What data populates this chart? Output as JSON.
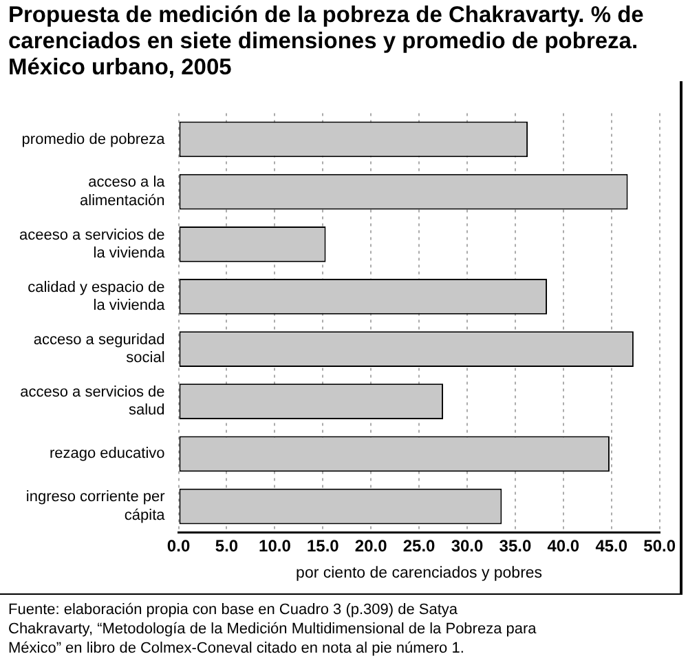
{
  "chart_data": {
    "type": "bar",
    "orientation": "horizontal",
    "title": "Propuesta de medición de la pobreza de Chakravarty. % de carenciados en siete dimensiones y promedio de pobreza. México urbano, 2005",
    "xlabel": "por ciento de carenciados y pobres",
    "categories": [
      "promedio de pobreza",
      "acceso a la alimentación",
      "aceeso a servicios de la vivienda",
      "calidad y espacio de la vivienda",
      "acceso a seguridad social",
      "acceso a servicios de salud",
      "rezago educativo",
      "ingreso corriente per cápita"
    ],
    "values": [
      36.3,
      46.7,
      15.3,
      38.3,
      47.3,
      27.5,
      44.8,
      33.6
    ],
    "color": "#c8c8c8",
    "xlim": [
      0,
      50
    ],
    "xticks": [
      {
        "value": 0,
        "label": "0.0"
      },
      {
        "value": 5,
        "label": "5.0"
      },
      {
        "value": 10,
        "label": "10.0"
      },
      {
        "value": 15,
        "label": "15.0"
      },
      {
        "value": 20,
        "label": "20.0"
      },
      {
        "value": 25,
        "label": "25.0"
      },
      {
        "value": 30,
        "label": "30.0"
      },
      {
        "value": 35,
        "label": "35.0"
      },
      {
        "value": 40,
        "label": "40.0"
      },
      {
        "value": 45,
        "label": "45.0"
      },
      {
        "value": 50,
        "label": "50.0"
      }
    ],
    "grid": "x",
    "legend": false,
    "annotations": [
      "Fuente: elaboración propia con base en Cuadro 3 (p.309) de Satya Chakravarty, “Metodología de la Medición Multidimensional de la Pobreza para México” en libro de Colmex-Coneval citado en nota al pie número 1."
    ]
  }
}
